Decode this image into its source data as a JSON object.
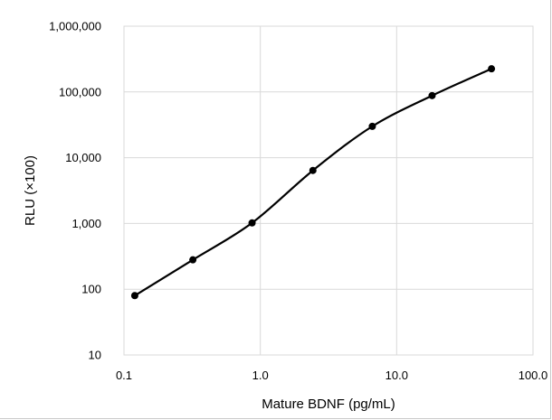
{
  "chart_data": {
    "type": "scatter",
    "title": "",
    "xlabel": "Mature BDNF (pg/mL)",
    "ylabel": "RLU (×100)",
    "x_scale": "log",
    "y_scale": "log",
    "xlim": [
      0.1,
      100
    ],
    "ylim": [
      10,
      1000000
    ],
    "x_ticks": [
      0.1,
      1,
      10,
      100
    ],
    "x_tick_labels": [
      "0.1",
      "1.0",
      "10.0",
      "100.0"
    ],
    "y_ticks": [
      10,
      100,
      1000,
      10000,
      100000,
      1000000
    ],
    "y_tick_labels": [
      "10",
      "100",
      "1,000",
      "10,000",
      "100,000",
      "1,000,000"
    ],
    "grid": true,
    "smoothed_line": true,
    "legend": "none",
    "series": [
      {
        "x": [
          0.12,
          0.32,
          0.87,
          2.43,
          6.63,
          18.2,
          49.6
        ],
        "y": [
          80,
          280,
          1020,
          6400,
          30000,
          88000,
          225000
        ]
      }
    ],
    "colors": {
      "line": "#000000",
      "markers": "#000000",
      "grid": "#d9d9d9"
    }
  }
}
